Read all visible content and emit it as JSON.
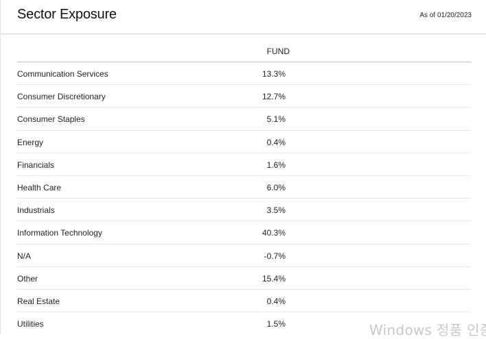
{
  "header": {
    "title": "Sector Exposure",
    "as_of": "As of 01/20/2023"
  },
  "table": {
    "column_header": "FUND",
    "rows": [
      {
        "sector": "Communication Services",
        "fund": "13.3%"
      },
      {
        "sector": "Consumer Discretionary",
        "fund": "12.7%"
      },
      {
        "sector": "Consumer Staples",
        "fund": "5.1%"
      },
      {
        "sector": "Energy",
        "fund": "0.4%"
      },
      {
        "sector": "Financials",
        "fund": "1.6%"
      },
      {
        "sector": "Health Care",
        "fund": "6.0%"
      },
      {
        "sector": "Industrials",
        "fund": "3.5%"
      },
      {
        "sector": "Information Technology",
        "fund": "40.3%"
      },
      {
        "sector": "N/A",
        "fund": "-0.7%"
      },
      {
        "sector": "Other",
        "fund": "15.4%"
      },
      {
        "sector": "Real Estate",
        "fund": "0.4%"
      },
      {
        "sector": "Utilities",
        "fund": "1.5%"
      }
    ]
  },
  "overlay": {
    "watermark_text": "Windows 정품 인증"
  }
}
